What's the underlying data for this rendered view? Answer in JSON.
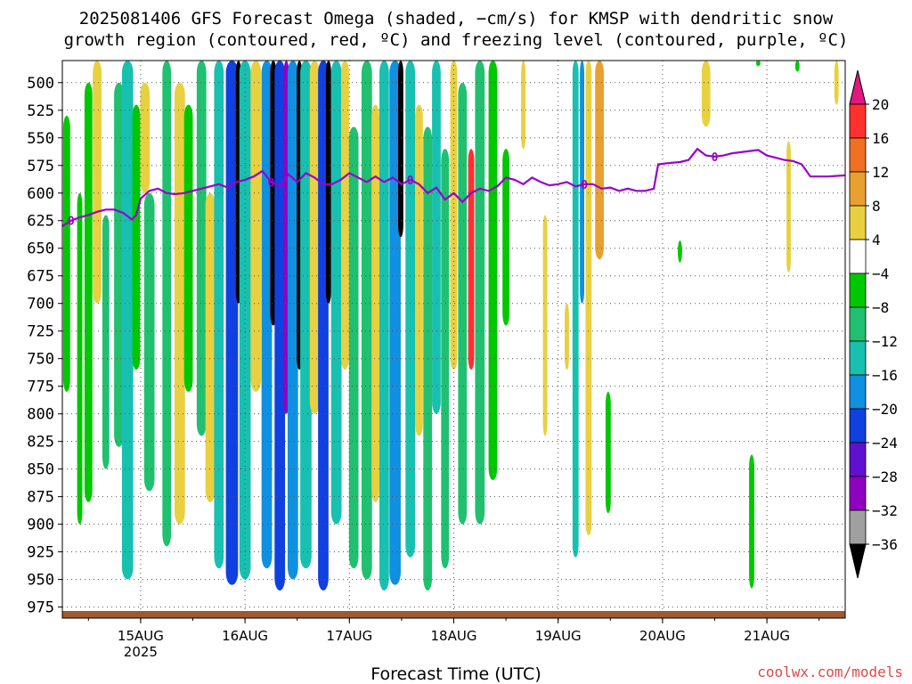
{
  "title_line1": "2025081406 GFS Forecast Omega (shaded, −cm/s) for KMSP with dendritic snow",
  "title_line2": "growth region (contoured, red, ºC) and freezing level (contoured, purple, ºC)",
  "credit": "coolwx.com/models",
  "chart_data": {
    "type": "heatmap",
    "title": "2025081406 GFS Forecast Omega (shaded, −cm/s) for KMSP with dendritic snow growth region (contoured, red, ºC) and freezing level (contoured, purple, ºC)",
    "xlabel": "Forecast Time (UTC)",
    "ylabel": "",
    "x_ticks": [
      {
        "label": "15AUG",
        "sublabel": "2025",
        "hour": 24
      },
      {
        "label": "16AUG",
        "sublabel": "",
        "hour": 48
      },
      {
        "label": "17AUG",
        "sublabel": "",
        "hour": 72
      },
      {
        "label": "18AUG",
        "sublabel": "",
        "hour": 96
      },
      {
        "label": "19AUG",
        "sublabel": "",
        "hour": 120
      },
      {
        "label": "20AUG",
        "sublabel": "",
        "hour": 144
      },
      {
        "label": "21AUG",
        "sublabel": "",
        "hour": 168
      }
    ],
    "x_range_hours": [
      6,
      186
    ],
    "y_ticks": [
      500,
      525,
      550,
      575,
      600,
      625,
      650,
      675,
      700,
      725,
      750,
      775,
      800,
      825,
      850,
      875,
      900,
      925,
      950,
      975
    ],
    "y_range_hpa": [
      480,
      985
    ],
    "grid": true,
    "colorbar": {
      "levels": [
        20,
        16,
        12,
        8,
        4,
        -4,
        -8,
        -12,
        -16,
        -20,
        -24,
        -28,
        -32,
        -36
      ],
      "colors": [
        "#ff3030",
        "#ee7020",
        "#e8a030",
        "#e8d040",
        "#ffffff",
        "#00c800",
        "#20c070",
        "#18c0b0",
        "#1090e0",
        "#1040e0",
        "#6010d0",
        "#9000c0",
        "#a0a0a0",
        "#000000"
      ],
      "top_arrow_color": "#e01880",
      "bottom_arrow_color": "#000000"
    },
    "freezing_level": {
      "label": "0",
      "color": "#9b00c8",
      "points": [
        [
          6,
          630
        ],
        [
          8,
          625
        ],
        [
          10,
          622
        ],
        [
          12,
          620
        ],
        [
          14,
          617
        ],
        [
          16,
          615
        ],
        [
          18,
          615
        ],
        [
          20,
          618
        ],
        [
          22,
          624
        ],
        [
          23,
          620
        ],
        [
          24,
          605
        ],
        [
          26,
          598
        ],
        [
          28,
          596
        ],
        [
          30,
          600
        ],
        [
          32,
          601
        ],
        [
          34,
          600
        ],
        [
          36,
          598
        ],
        [
          38,
          596
        ],
        [
          40,
          594
        ],
        [
          42,
          592
        ],
        [
          44,
          595
        ],
        [
          46,
          590
        ],
        [
          48,
          588
        ],
        [
          50,
          585
        ],
        [
          52,
          580
        ],
        [
          54,
          590
        ],
        [
          56,
          594
        ],
        [
          58,
          583
        ],
        [
          60,
          590
        ],
        [
          62,
          582
        ],
        [
          64,
          586
        ],
        [
          66,
          592
        ],
        [
          68,
          592
        ],
        [
          70,
          588
        ],
        [
          72,
          582
        ],
        [
          74,
          586
        ],
        [
          76,
          590
        ],
        [
          78,
          585
        ],
        [
          80,
          590
        ],
        [
          82,
          586
        ],
        [
          84,
          592
        ],
        [
          86,
          588
        ],
        [
          88,
          592
        ],
        [
          90,
          600
        ],
        [
          92,
          595
        ],
        [
          94,
          606
        ],
        [
          96,
          600
        ],
        [
          98,
          608
        ],
        [
          100,
          600
        ],
        [
          102,
          596
        ],
        [
          104,
          598
        ],
        [
          106,
          594
        ],
        [
          108,
          586
        ],
        [
          110,
          588
        ],
        [
          112,
          592
        ],
        [
          114,
          586
        ],
        [
          116,
          590
        ],
        [
          118,
          593
        ],
        [
          120,
          592
        ],
        [
          122,
          590
        ],
        [
          124,
          594
        ],
        [
          126,
          592
        ],
        [
          128,
          592
        ],
        [
          130,
          596
        ],
        [
          132,
          595
        ],
        [
          134,
          598
        ],
        [
          136,
          596
        ],
        [
          138,
          598
        ],
        [
          140,
          598
        ],
        [
          142,
          596
        ],
        [
          143,
          574
        ],
        [
          145,
          573
        ],
        [
          148,
          572
        ],
        [
          150,
          570
        ],
        [
          152,
          560
        ],
        [
          154,
          566
        ],
        [
          156,
          567
        ],
        [
          158,
          566
        ],
        [
          160,
          564
        ],
        [
          162,
          563
        ],
        [
          164,
          562
        ],
        [
          166,
          561
        ],
        [
          168,
          566
        ],
        [
          170,
          568
        ],
        [
          172,
          570
        ],
        [
          174,
          571
        ],
        [
          176,
          574
        ],
        [
          178,
          585
        ],
        [
          182,
          585
        ],
        [
          186,
          584
        ]
      ]
    },
    "snow_growth_region_color": "#ff3030",
    "terrain_color": "#a05830",
    "omega_bands": [
      {
        "hour": 7,
        "width": 1.6,
        "top": 530,
        "bottom": 780,
        "value": -6
      },
      {
        "hour": 10,
        "width": 1.2,
        "top": 600,
        "bottom": 900,
        "value": -6
      },
      {
        "hour": 12,
        "width": 1.8,
        "top": 500,
        "bottom": 880,
        "value": -6
      },
      {
        "hour": 14,
        "width": 2.0,
        "top": 480,
        "bottom": 700,
        "value": 6
      },
      {
        "hour": 16,
        "width": 1.6,
        "top": 620,
        "bottom": 850,
        "value": -10
      },
      {
        "hour": 19,
        "width": 2.2,
        "top": 500,
        "bottom": 830,
        "value": -8
      },
      {
        "hour": 21,
        "width": 2.6,
        "top": 480,
        "bottom": 950,
        "value": -14
      },
      {
        "hour": 23,
        "width": 1.8,
        "top": 520,
        "bottom": 760,
        "value": -6
      },
      {
        "hour": 25,
        "width": 2.2,
        "top": 500,
        "bottom": 600,
        "value": 6
      },
      {
        "hour": 26,
        "width": 2.4,
        "top": 600,
        "bottom": 870,
        "value": -8
      },
      {
        "hour": 30,
        "width": 2.0,
        "top": 480,
        "bottom": 920,
        "value": -10
      },
      {
        "hour": 33,
        "width": 2.4,
        "top": 500,
        "bottom": 900,
        "value": 6
      },
      {
        "hour": 35,
        "width": 2.0,
        "top": 520,
        "bottom": 780,
        "value": -6
      },
      {
        "hour": 38,
        "width": 2.2,
        "top": 480,
        "bottom": 820,
        "value": -10
      },
      {
        "hour": 40,
        "width": 2.2,
        "top": 600,
        "bottom": 880,
        "value": 6
      },
      {
        "hour": 42,
        "width": 2.2,
        "top": 480,
        "bottom": 940,
        "value": -14
      },
      {
        "hour": 45,
        "width": 2.8,
        "top": 480,
        "bottom": 955,
        "value": -22
      },
      {
        "hour": 46.5,
        "width": 1.2,
        "top": 480,
        "bottom": 700,
        "value": -38
      },
      {
        "hour": 48,
        "width": 2.6,
        "top": 480,
        "bottom": 950,
        "value": -14
      },
      {
        "hour": 50.5,
        "width": 2.4,
        "top": 480,
        "bottom": 780,
        "value": 6
      },
      {
        "hour": 53,
        "width": 2.4,
        "top": 480,
        "bottom": 940,
        "value": -18
      },
      {
        "hour": 54.5,
        "width": 1.4,
        "top": 480,
        "bottom": 720,
        "value": -38
      },
      {
        "hour": 56,
        "width": 2.4,
        "top": 480,
        "bottom": 960,
        "value": -22
      },
      {
        "hour": 57.5,
        "width": 1.2,
        "top": 480,
        "bottom": 800,
        "value": -30
      },
      {
        "hour": 59,
        "width": 2.4,
        "top": 480,
        "bottom": 950,
        "value": -18
      },
      {
        "hour": 60.5,
        "width": 1.2,
        "top": 480,
        "bottom": 760,
        "value": -38
      },
      {
        "hour": 62,
        "width": 2.6,
        "top": 480,
        "bottom": 940,
        "value": -14
      },
      {
        "hour": 64,
        "width": 2.2,
        "top": 480,
        "bottom": 800,
        "value": 6
      },
      {
        "hour": 66,
        "width": 2.4,
        "top": 480,
        "bottom": 960,
        "value": -22
      },
      {
        "hour": 67.2,
        "width": 1.2,
        "top": 480,
        "bottom": 700,
        "value": -38
      },
      {
        "hour": 69,
        "width": 2.4,
        "top": 480,
        "bottom": 900,
        "value": -14
      },
      {
        "hour": 71,
        "width": 1.8,
        "top": 480,
        "bottom": 760,
        "value": 6
      },
      {
        "hour": 73,
        "width": 2.2,
        "top": 540,
        "bottom": 940,
        "value": -10
      },
      {
        "hour": 76,
        "width": 2.4,
        "top": 480,
        "bottom": 950,
        "value": -8
      },
      {
        "hour": 78,
        "width": 1.8,
        "top": 520,
        "bottom": 880,
        "value": 6
      },
      {
        "hour": 80,
        "width": 2.2,
        "top": 480,
        "bottom": 960,
        "value": -12
      },
      {
        "hour": 82.5,
        "width": 2.6,
        "top": 480,
        "bottom": 955,
        "value": -16
      },
      {
        "hour": 83.8,
        "width": 1.2,
        "top": 480,
        "bottom": 640,
        "value": -38
      },
      {
        "hour": 86,
        "width": 2.2,
        "top": 480,
        "bottom": 930,
        "value": -12
      },
      {
        "hour": 88,
        "width": 1.8,
        "top": 520,
        "bottom": 820,
        "value": 6
      },
      {
        "hour": 90,
        "width": 2.0,
        "top": 540,
        "bottom": 960,
        "value": -10
      },
      {
        "hour": 92,
        "width": 2.0,
        "top": 480,
        "bottom": 800,
        "value": -14
      },
      {
        "hour": 94,
        "width": 1.8,
        "top": 560,
        "bottom": 940,
        "value": -8
      },
      {
        "hour": 96,
        "width": 1.6,
        "top": 480,
        "bottom": 760,
        "value": 6
      },
      {
        "hour": 98,
        "width": 2.0,
        "top": 500,
        "bottom": 900,
        "value": -8
      },
      {
        "hour": 100,
        "width": 1.4,
        "top": 560,
        "bottom": 760,
        "value": 18
      },
      {
        "hour": 102,
        "width": 2.2,
        "top": 480,
        "bottom": 900,
        "value": -8
      },
      {
        "hour": 105,
        "width": 2.0,
        "top": 480,
        "bottom": 860,
        "value": -6
      },
      {
        "hour": 108,
        "width": 1.6,
        "top": 560,
        "bottom": 720,
        "value": -6
      },
      {
        "hour": 112,
        "width": 1.0,
        "top": 480,
        "bottom": 560,
        "value": 6
      },
      {
        "hour": 117,
        "width": 1.0,
        "top": 620,
        "bottom": 820,
        "value": 6
      },
      {
        "hour": 122,
        "width": 1.0,
        "top": 700,
        "bottom": 760,
        "value": 6
      },
      {
        "hour": 124,
        "width": 1.4,
        "top": 480,
        "bottom": 930,
        "value": -14
      },
      {
        "hour": 125.5,
        "width": 1.0,
        "top": 480,
        "bottom": 700,
        "value": -18
      },
      {
        "hour": 127,
        "width": 1.4,
        "top": 480,
        "bottom": 910,
        "value": 6
      },
      {
        "hour": 129.5,
        "width": 2.0,
        "top": 480,
        "bottom": 660,
        "value": 10
      },
      {
        "hour": 131.5,
        "width": 1.2,
        "top": 780,
        "bottom": 890,
        "value": -6
      },
      {
        "hour": 154,
        "width": 2.0,
        "top": 480,
        "bottom": 540,
        "value": 6
      },
      {
        "hour": 164.5,
        "width": 1.2,
        "top": 837,
        "bottom": 958,
        "value": -6
      },
      {
        "hour": 173,
        "width": 1.0,
        "top": 553,
        "bottom": 672,
        "value": 6
      },
      {
        "hour": 184,
        "width": 1.0,
        "top": 480,
        "bottom": 520,
        "value": 6
      },
      {
        "hour": 148,
        "width": 1.0,
        "top": 643,
        "bottom": 663,
        "value": -6
      },
      {
        "hour": 166,
        "width": 1.0,
        "top": 480,
        "bottom": 485,
        "value": -6
      },
      {
        "hour": 175,
        "width": 1.0,
        "top": 480,
        "bottom": 490,
        "value": -6
      }
    ]
  }
}
